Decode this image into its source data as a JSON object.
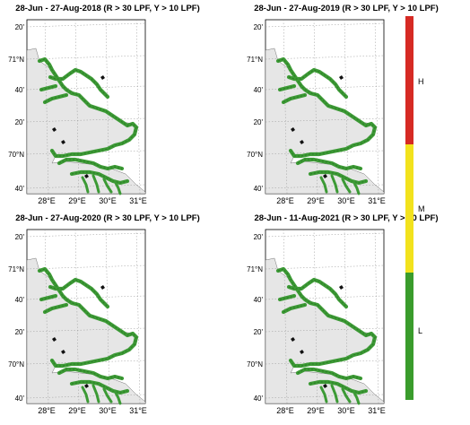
{
  "colors": {
    "land": "#e6e6e6",
    "water": "#ffffff",
    "coast": "#3c9a35",
    "coast_dark": "#2d7a28",
    "grid": "#9a9a9a",
    "risk_high": "#d62a24",
    "risk_medium": "#f2e21d",
    "risk_low": "#3a9c2c"
  },
  "panels": [
    {
      "title": "28-Jun - 27-Aug-2018 (R > 30 LPF, Y > 10 LPF)"
    },
    {
      "title": "28-Jun - 27-Aug-2019 (R > 30 LPF, Y > 10 LPF)"
    },
    {
      "title": "28-Jun - 27-Aug-2020 (R > 30 LPF, Y > 10 LPF)"
    },
    {
      "title": "28-Jun - 11-Aug-2021 (R > 30 LPF, Y > 10 LPF)"
    }
  ],
  "map_axes": {
    "lat_labels": [
      "20'",
      "71°N",
      "40'",
      "20'",
      "70°N",
      "40'"
    ],
    "lon_labels": [
      "28°E",
      "29°E",
      "30°E",
      "31°E"
    ]
  },
  "colorbar": {
    "labels": {
      "high": "H",
      "medium": "M",
      "low": "L"
    }
  }
}
